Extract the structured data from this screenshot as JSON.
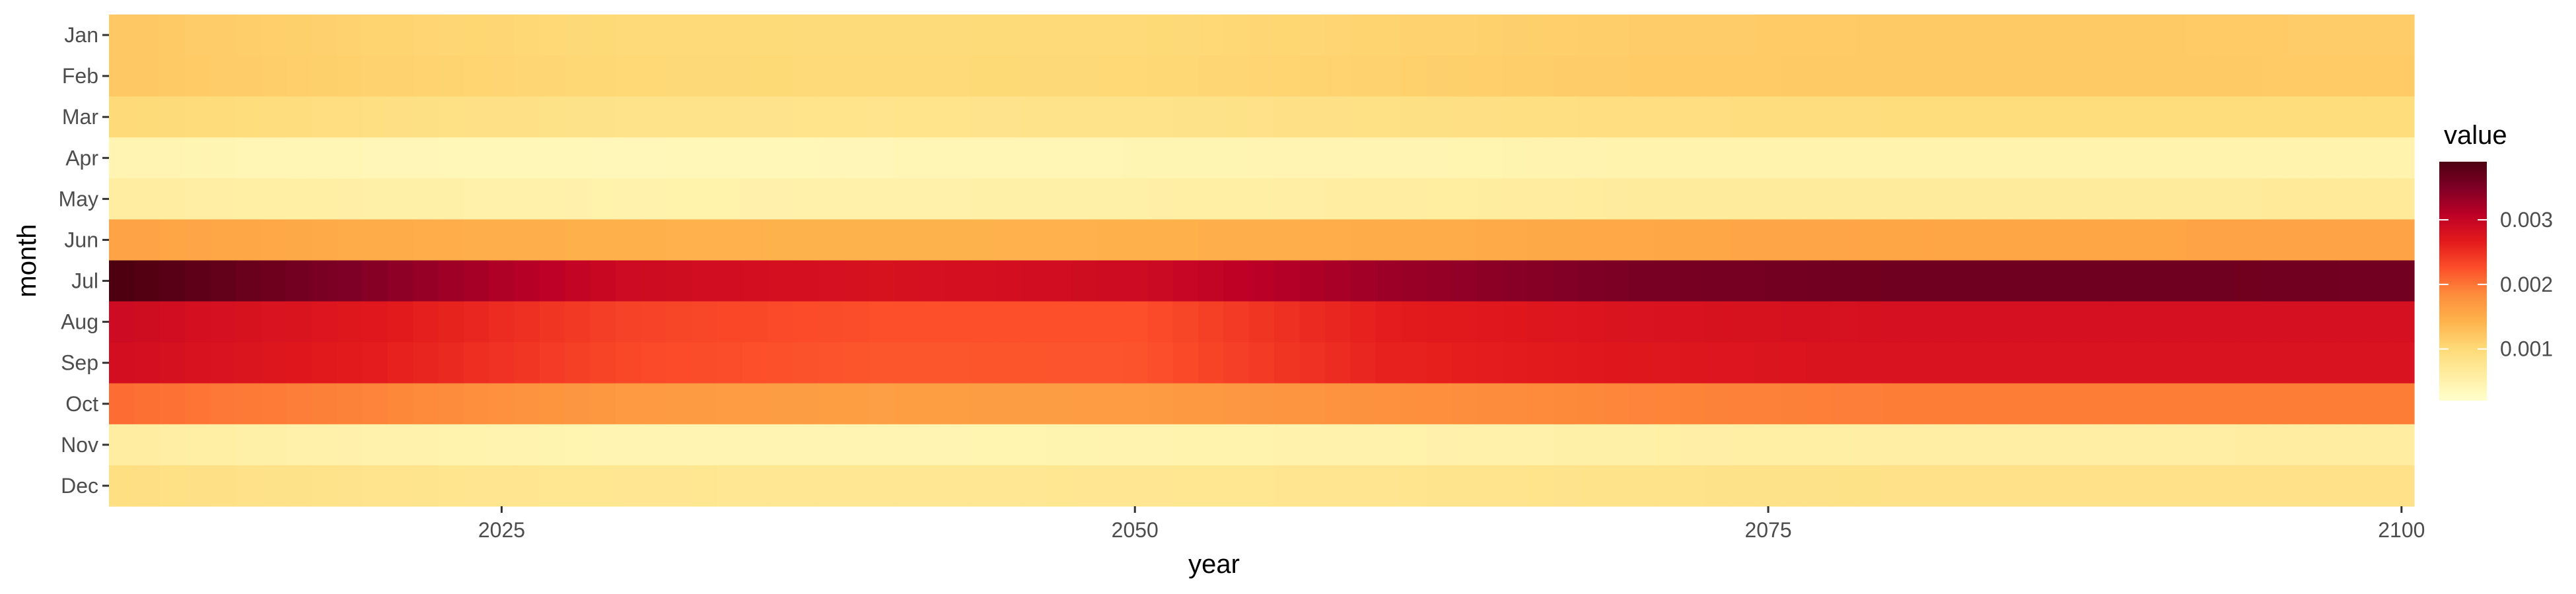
{
  "chart_data": {
    "type": "heatmap",
    "title": "",
    "xlabel": "year",
    "ylabel": "month",
    "x_range": [
      2010,
      2100
    ],
    "x_ticks": [
      2025,
      2050,
      2075,
      2100
    ],
    "months": [
      "Jan",
      "Feb",
      "Mar",
      "Apr",
      "May",
      "Jun",
      "Jul",
      "Aug",
      "Sep",
      "Oct",
      "Nov",
      "Dec"
    ],
    "row_values_at": {
      "years": [
        2010,
        2020,
        2030,
        2040,
        2050,
        2060,
        2070,
        2080,
        2090,
        2100
      ],
      "Jan": [
        0.0012,
        0.00108,
        0.001,
        0.00098,
        0.001,
        0.00108,
        0.00115,
        0.00118,
        0.00118,
        0.00115
      ],
      "Feb": [
        0.0012,
        0.0011,
        0.00102,
        0.001,
        0.00102,
        0.0011,
        0.00117,
        0.00118,
        0.00118,
        0.00117
      ],
      "Mar": [
        0.001,
        0.0009,
        0.00082,
        0.0008,
        0.00082,
        0.00088,
        0.00092,
        0.00095,
        0.00095,
        0.00095
      ],
      "Apr": [
        0.00045,
        0.0004,
        0.00038,
        0.0004,
        0.00043,
        0.00045,
        0.00048,
        0.00048,
        0.00048,
        0.00048
      ],
      "May": [
        0.0006,
        0.00055,
        0.0005,
        0.00052,
        0.00055,
        0.0006,
        0.00065,
        0.00065,
        0.00065,
        0.00068
      ],
      "Jun": [
        0.0016,
        0.0015,
        0.00145,
        0.00143,
        0.00145,
        0.0015,
        0.00155,
        0.00158,
        0.00158,
        0.0016
      ],
      "Jul": [
        0.0039,
        0.00345,
        0.0029,
        0.0028,
        0.0029,
        0.0033,
        0.00355,
        0.00362,
        0.00362,
        0.0036
      ],
      "Aug": [
        0.0029,
        0.0027,
        0.00235,
        0.00225,
        0.00225,
        0.00265,
        0.00278,
        0.00282,
        0.00282,
        0.00282
      ],
      "Sep": [
        0.00285,
        0.00265,
        0.0023,
        0.0022,
        0.00222,
        0.0026,
        0.00272,
        0.00278,
        0.00278,
        0.00278
      ],
      "Oct": [
        0.00205,
        0.0019,
        0.0017,
        0.00165,
        0.00168,
        0.0018,
        0.0019,
        0.00195,
        0.00195,
        0.00195
      ],
      "Nov": [
        0.0006,
        0.0005,
        0.00045,
        0.00045,
        0.00047,
        0.0005,
        0.00055,
        0.00058,
        0.00058,
        0.0006
      ],
      "Dec": [
        0.0009,
        0.0008,
        0.00075,
        0.00073,
        0.00075,
        0.00078,
        0.00082,
        0.00085,
        0.00085,
        0.00085
      ]
    },
    "legend": {
      "title": "value",
      "position": "right",
      "range": [
        0.0002,
        0.0039
      ],
      "ticks": [
        0.001,
        0.002,
        0.003
      ],
      "tick_labels": [
        "0.001",
        "0.002",
        "0.003"
      ]
    },
    "color_scale": [
      "#ffffcc",
      "#ffeda0",
      "#fed976",
      "#feb24c",
      "#fd8d3c",
      "#fc4e2a",
      "#e31a1c",
      "#bd0026",
      "#800026",
      "#4d0010"
    ],
    "grid": false
  }
}
